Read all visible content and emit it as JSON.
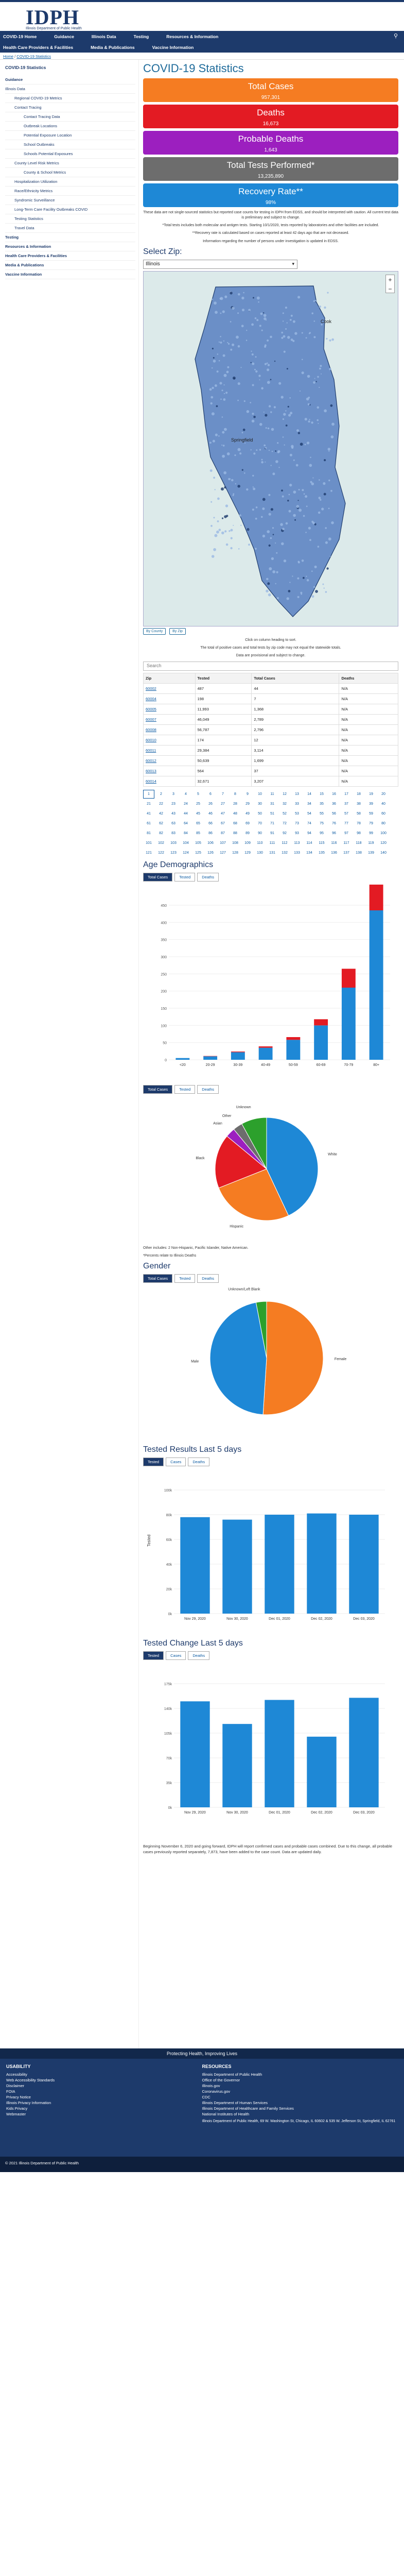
{
  "brand": {
    "logo": "IDPH",
    "tagline": "Illinois Department of Public Health"
  },
  "nav": {
    "row1": [
      {
        "label": "COVID-19 Home"
      },
      {
        "label": "Guidance"
      },
      {
        "label": "Illinois Data"
      },
      {
        "label": "Testing"
      },
      {
        "label": "Resources & Information"
      }
    ],
    "row2": [
      {
        "label": "Health Care Providers & Facilities"
      },
      {
        "label": "Media & Publications"
      },
      {
        "label": "Vaccine Information"
      }
    ]
  },
  "breadcrumb": {
    "home": "Home",
    "sep": " / ",
    "item": "COVID-19 Statistics"
  },
  "sidebar": {
    "title": "COVID-19 Statistics",
    "items": [
      {
        "label": "Guidance",
        "cls": "bold"
      },
      {
        "label": "Illinois Data",
        "cls": ""
      },
      {
        "label": "Regional COVID-19 Metrics",
        "cls": "sub"
      },
      {
        "label": "Contact Tracing",
        "cls": "sub"
      },
      {
        "label": "Contact Tracing Data",
        "cls": "sub2"
      },
      {
        "label": "Outbreak Locations",
        "cls": "sub2"
      },
      {
        "label": "Potential Exposure Location",
        "cls": "sub2"
      },
      {
        "label": "School Outbreaks",
        "cls": "sub2"
      },
      {
        "label": "Schools Potential Exposures",
        "cls": "sub2"
      },
      {
        "label": "County Level Risk Metrics",
        "cls": "sub"
      },
      {
        "label": "County & School Metrics",
        "cls": "sub2"
      },
      {
        "label": "Hospitalization Utilization",
        "cls": "sub"
      },
      {
        "label": "Race/Ethnicity Metrics",
        "cls": "sub"
      },
      {
        "label": "Syndromic Surveillance",
        "cls": "sub"
      },
      {
        "label": "Long-Term Care Facility Outbreaks COVID",
        "cls": "sub"
      },
      {
        "label": "Testing Statistics",
        "cls": "sub"
      },
      {
        "label": "Travel Data",
        "cls": "sub"
      },
      {
        "label": "Testing",
        "cls": "bold"
      },
      {
        "label": "Resources & Information",
        "cls": "bold"
      },
      {
        "label": "Health Care Providers & Facilities",
        "cls": "bold"
      },
      {
        "label": "Media & Publications",
        "cls": "bold"
      },
      {
        "label": "Vaccine Information",
        "cls": "bold"
      }
    ]
  },
  "page": {
    "title": "COVID-19 Statistics"
  },
  "stats": [
    {
      "label": "Total Cases",
      "value": "957,301",
      "color": "#f57c22"
    },
    {
      "label": "Deaths",
      "value": "16,673",
      "color": "#e31b23"
    },
    {
      "label": "Probable Deaths",
      "value": "1,643",
      "color": "#9c1fbf"
    },
    {
      "label": "Total Tests Performed*",
      "value": "13,235,890",
      "color": "#6d6d6d"
    },
    {
      "label": "Recovery Rate**",
      "value": "98%",
      "color": "#1e88d6"
    }
  ],
  "notes": [
    "These data are not single-sourced statistics but reported case counts for testing in IDPH from EDSS, and should be interpreted with caution. All current test data is preliminary and subject to change.",
    "*Total tests includes both molecular and antigen tests. Starting 10/1/2020, tests reported by laboratories and other facilities are included.",
    "**Recovery rate is calculated based on cases reported at least 42 days ago that are not deceased.",
    "Information regarding the number of persons under investigation is updated in EDSS."
  ],
  "zip": {
    "heading": "Select Zip:",
    "selected": "Illinois",
    "toggles": [
      "By County",
      "By Zip"
    ]
  },
  "map_labels": {
    "cook": "Cook",
    "springfield": "Springfield"
  },
  "table": {
    "caption": "Click on column heading to sort.",
    "note1": "The total of positive cases and total tests by zip code may not equal the statewide totals.",
    "note2": "Data are provisional and subject to change.",
    "search_placeholder": "Search",
    "headers": [
      "Zip",
      "Tested",
      "Total Cases",
      "Deaths"
    ],
    "rows": [
      [
        "60002",
        "487",
        "44",
        "N/A"
      ],
      [
        "60004",
        "198",
        "7",
        "N/A"
      ],
      [
        "60005",
        "11,993",
        "1,368",
        "N/A"
      ],
      [
        "60007",
        "46,049",
        "2,789",
        "N/A"
      ],
      [
        "60008",
        "56,787",
        "2,796",
        "N/A"
      ],
      [
        "60010",
        "174",
        "12",
        "N/A"
      ],
      [
        "60011",
        "29,384",
        "3,114",
        "N/A"
      ],
      [
        "60012",
        "50,639",
        "1,699",
        "N/A"
      ],
      [
        "60013",
        "564",
        "37",
        "N/A"
      ],
      [
        "60014",
        "32,671",
        "3,207",
        "N/A"
      ]
    ]
  },
  "pages": [
    "1",
    "2",
    "3",
    "4",
    "5",
    "6",
    "7",
    "8",
    "9",
    "10",
    "11",
    "12",
    "13",
    "14",
    "15",
    "16",
    "17",
    "18",
    "19",
    "20",
    "21",
    "22",
    "23",
    "24",
    "25",
    "26",
    "27",
    "28",
    "29",
    "30",
    "31",
    "32",
    "33",
    "34",
    "35",
    "36",
    "37",
    "38",
    "39",
    "40",
    "41",
    "42",
    "43",
    "44",
    "45",
    "46",
    "47",
    "48",
    "49",
    "50",
    "51",
    "52",
    "53",
    "54",
    "55",
    "56",
    "57",
    "58",
    "59",
    "60",
    "61",
    "62",
    "63",
    "64",
    "65",
    "66",
    "67",
    "68",
    "69",
    "70",
    "71",
    "72",
    "73",
    "74",
    "75",
    "76",
    "77",
    "78",
    "79",
    "80",
    "81",
    "82",
    "83",
    "84",
    "85",
    "86",
    "87",
    "88",
    "89",
    "90",
    "91",
    "92",
    "93",
    "94",
    "95",
    "96",
    "97",
    "98",
    "99",
    "100",
    "101",
    "102",
    "103",
    "104",
    "105",
    "106",
    "107",
    "108",
    "109",
    "110",
    "111",
    "112",
    "113",
    "114",
    "115",
    "116",
    "117",
    "118",
    "119",
    "120",
    "121",
    "122",
    "123",
    "124",
    "125",
    "126",
    "127",
    "128",
    "129",
    "130",
    "131",
    "132",
    "133",
    "134",
    "135",
    "136",
    "137",
    "138",
    "139",
    "140"
  ],
  "age": {
    "heading": "Age Demographics",
    "tabs": [
      "Total Cases",
      "Tested",
      "Deaths"
    ],
    "tabs2": [
      "Total Cases",
      "Tested",
      "Deaths"
    ],
    "race_note1": "Other includes: 2 Non-Hispanic, Pacific Islander, Native American.",
    "race_note2": "*Percents relate to Illinois Deaths"
  },
  "chart_data": [
    {
      "type": "bar",
      "title": "",
      "categories": [
        "<20",
        "20-29",
        "30-39",
        "40-49",
        "50-59",
        "60-69",
        "70-79",
        "80+"
      ],
      "series": [
        {
          "name": "Cases",
          "values": [
            5,
            10,
            22,
            35,
            58,
            100,
            210,
            435
          ]
        },
        {
          "name": "Deaths",
          "values": [
            0,
            1,
            2,
            4,
            8,
            18,
            55,
            120
          ]
        }
      ],
      "ylim": [
        0,
        450
      ]
    },
    {
      "type": "pie",
      "title": "",
      "categories": [
        "White",
        "Hispanic",
        "Black",
        "Asian",
        "Other",
        "Unknown"
      ],
      "values": [
        43,
        26,
        17,
        3,
        3,
        8
      ]
    },
    {
      "type": "pie",
      "title": "",
      "categories": [
        "Female",
        "Male",
        "Unknown/Left Blank"
      ],
      "values": [
        51,
        46,
        3
      ]
    },
    {
      "type": "bar",
      "title": "",
      "categories": [
        "Nov 29, 2020",
        "Nov 30, 2020",
        "Dec 01, 2020",
        "Dec 02, 2020",
        "Dec 03, 2020"
      ],
      "values": [
        78000,
        76000,
        80000,
        81000,
        80000
      ],
      "ylim": [
        0,
        100000
      ]
    },
    {
      "type": "bar",
      "title": "",
      "categories": [
        "Nov 29, 2020",
        "Nov 30, 2020",
        "Dec 01, 2020",
        "Dec 02, 2020",
        "Dec 03, 2020"
      ],
      "values": [
        150000,
        118000,
        152000,
        100000,
        155000
      ],
      "ylim": [
        0,
        175000
      ]
    }
  ],
  "gender": {
    "heading": "Gender",
    "tabs": [
      "Total Cases",
      "Tested",
      "Deaths"
    ]
  },
  "tested5": {
    "heading": "Tested Results Last 5 days",
    "tabs": [
      "Tested",
      "Cases",
      "Deaths"
    ],
    "ylabel": "Tested"
  },
  "change5": {
    "heading": "Tested Change Last 5 days",
    "tabs": [
      "Tested",
      "Cases",
      "Deaths"
    ]
  },
  "update_text": "Beginning November 6, 2020 and going forward, IDPH will report confirmed cases and probable cases combined. Due to this change, all probable cases previously reported separately, 7,873, have been added to the case count. Data are updated daily.",
  "footer": {
    "band": "Protecting Health, Improving Lives",
    "left_title": "USABILITY",
    "left_links": [
      "Accessibility",
      "Web Accessibility Standards",
      "Disclaimer",
      "FOIA",
      "Privacy Notice",
      "Illinois Privacy Information",
      "Kids Privacy",
      "Webmaster"
    ],
    "right_title": "RESOURCES",
    "right_links": [
      "Illinois Department of Public Health",
      "Office of the Governor",
      "Illinois.gov",
      "Coronavirus.gov",
      "CDC",
      "Illinois Department of Human Services",
      "Illinois Department of Healthcare and Family Services",
      "National Institutes of Health"
    ],
    "address": "Illinois Department of Public Health, 69 W. Washington St, Chicago, IL 60602 & 535 W. Jefferson St, Springfield, IL 62761",
    "copyright": "© 2021 Illinois Department of Public Health"
  }
}
